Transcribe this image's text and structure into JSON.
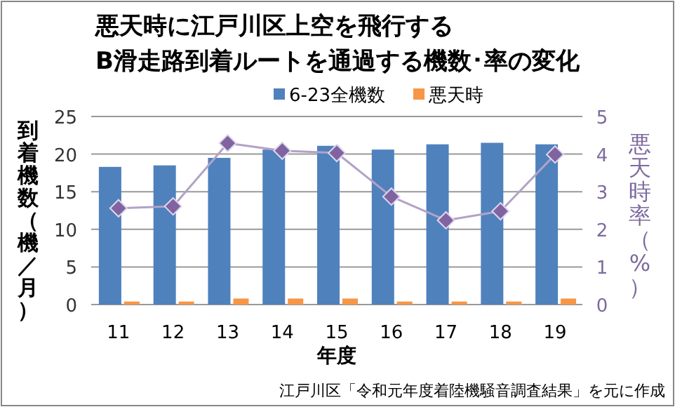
{
  "chart_data": {
    "type": "bar",
    "title": "悪天時に江戸川区上空を飛行する\nB滑走路到着ルートを通過する機数･率の変化",
    "xlabel": "年度",
    "ylabel": "到着機数（機／月）",
    "y2label": "悪天時率（%）",
    "categories": [
      "11",
      "12",
      "13",
      "14",
      "15",
      "16",
      "17",
      "18",
      "19"
    ],
    "series": [
      {
        "name": "6-23全機数",
        "color": "#4f81bd",
        "values": [
          18.3,
          18.5,
          19.5,
          20.6,
          21.1,
          20.6,
          21.3,
          21.5,
          21.3
        ]
      },
      {
        "name": "悪天時",
        "color": "#f79646",
        "values": [
          0.4,
          0.4,
          0.8,
          0.8,
          0.8,
          0.4,
          0.4,
          0.4,
          0.8
        ]
      },
      {
        "type": "line",
        "axis": "y2",
        "color": "#8064a2",
        "marker": "diamond",
        "values": [
          2.56,
          2.61,
          4.29,
          4.09,
          4.03,
          2.87,
          2.24,
          2.48,
          3.99
        ]
      }
    ],
    "ylim": [
      0,
      25
    ],
    "yticks": [
      0,
      5,
      10,
      15,
      20,
      25
    ],
    "y2lim": [
      0,
      5
    ],
    "y2ticks": [
      0,
      1,
      2,
      3,
      4,
      5
    ],
    "grid": "y",
    "legend": "top",
    "annotations": [
      "江戸川区「令和元年度着陸機騒音調査結果」を元に作成"
    ]
  }
}
